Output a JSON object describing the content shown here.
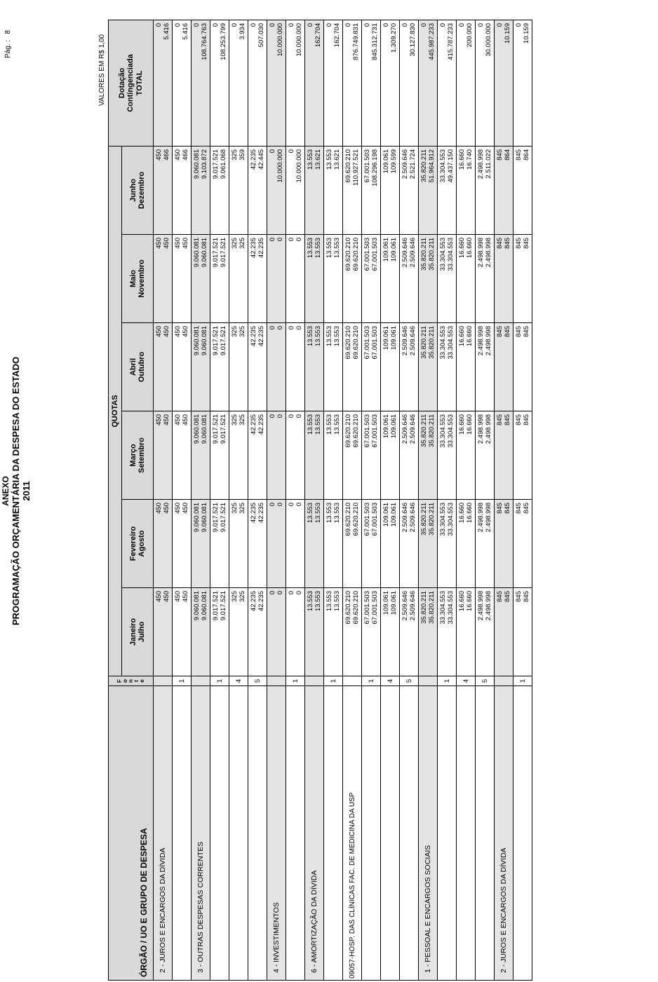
{
  "header": {
    "annex": "ANEXO",
    "title": "PROGRAMAÇÃO ORÇAMENTÁRIA DA DESPESA DO ESTADO",
    "year": "2011",
    "page_label": "Pág. :",
    "page_number": "8",
    "units": "VALORES EM R$ 1,00"
  },
  "columns": {
    "org": "ÓRGÃO / UO  E GRUPO DE DESPESA",
    "fonte": "F o n t e",
    "quotas": "QUOTAS",
    "months": [
      {
        "a": "Janeiro",
        "b": "Julho"
      },
      {
        "a": "Fevereiro",
        "b": "Agosto"
      },
      {
        "a": "Março",
        "b": "Setembro"
      },
      {
        "a": "Abril",
        "b": "Outubro"
      },
      {
        "a": "Maio",
        "b": "Novembro"
      },
      {
        "a": "Junho",
        "b": "Dezembro"
      }
    ],
    "dotacao": "Dotação",
    "contingenciada": "Contingenciada",
    "total": "TOTAL"
  },
  "rows": [
    {
      "kind": "grp",
      "name": "2 - JUROS E ENCARGOS DA DÍVIDA",
      "fonte": "",
      "q": [
        [
          "450",
          "450"
        ],
        [
          "450",
          "450"
        ],
        [
          "450",
          "450"
        ],
        [
          "450",
          "450"
        ],
        [
          "450",
          "450"
        ],
        [
          "450",
          "466"
        ]
      ],
      "t": [
        "0",
        "5.416"
      ]
    },
    {
      "kind": "sub",
      "name": "",
      "fonte": "1",
      "q": [
        [
          "450",
          "450"
        ],
        [
          "450",
          "450"
        ],
        [
          "450",
          "450"
        ],
        [
          "450",
          "450"
        ],
        [
          "450",
          "450"
        ],
        [
          "450",
          "466"
        ]
      ],
      "t": [
        "0",
        "5.416"
      ]
    },
    {
      "kind": "grp",
      "name": "3 - OUTRAS DESPESAS CORRENTES",
      "fonte": "",
      "q": [
        [
          "9.060.081",
          "9.060.081"
        ],
        [
          "9.060.081",
          "9.060.081"
        ],
        [
          "9.060.081",
          "9.060.081"
        ],
        [
          "9.060.081",
          "9.060.081"
        ],
        [
          "9.060.081",
          "9.060.081"
        ],
        [
          "9.060.081",
          "9.103.872"
        ]
      ],
      "t": [
        "0",
        "108.764.763"
      ]
    },
    {
      "kind": "sub",
      "name": "",
      "fonte": "1",
      "q": [
        [
          "9.017.521",
          "9.017.521"
        ],
        [
          "9.017.521",
          "9.017.521"
        ],
        [
          "9.017.521",
          "9.017.521"
        ],
        [
          "9.017.521",
          "9.017.521"
        ],
        [
          "9.017.521",
          "9.017.521"
        ],
        [
          "9.017.521",
          "9.061.068"
        ]
      ],
      "t": [
        "0",
        "108.253.799"
      ]
    },
    {
      "kind": "sub",
      "name": "",
      "fonte": "4",
      "q": [
        [
          "325",
          "325"
        ],
        [
          "325",
          "325"
        ],
        [
          "325",
          "325"
        ],
        [
          "325",
          "325"
        ],
        [
          "325",
          "325"
        ],
        [
          "325",
          "359"
        ]
      ],
      "t": [
        "0",
        "3.934"
      ]
    },
    {
      "kind": "sub",
      "name": "",
      "fonte": "5",
      "q": [
        [
          "42.235",
          "42.235"
        ],
        [
          "42.235",
          "42.235"
        ],
        [
          "42.235",
          "42.235"
        ],
        [
          "42.235",
          "42.235"
        ],
        [
          "42.235",
          "42.235"
        ],
        [
          "42.235",
          "42.445"
        ]
      ],
      "t": [
        "0",
        "507.030"
      ]
    },
    {
      "kind": "grp",
      "name": "4 - INVESTIMENTOS",
      "fonte": "",
      "q": [
        [
          "0",
          "0"
        ],
        [
          "0",
          "0"
        ],
        [
          "0",
          "0"
        ],
        [
          "0",
          "0"
        ],
        [
          "0",
          "0"
        ],
        [
          "0",
          "10.000.000"
        ]
      ],
      "t": [
        "0",
        "10.000.000"
      ]
    },
    {
      "kind": "sub",
      "name": "",
      "fonte": "1",
      "q": [
        [
          "0",
          "0"
        ],
        [
          "0",
          "0"
        ],
        [
          "0",
          "0"
        ],
        [
          "0",
          "0"
        ],
        [
          "0",
          "0"
        ],
        [
          "0",
          "10.000.000"
        ]
      ],
      "t": [
        "0",
        "10.000.000"
      ]
    },
    {
      "kind": "grp",
      "name": "6 - AMORTIZAÇÃO DA DÍVIDA",
      "fonte": "",
      "q": [
        [
          "13.553",
          "13.553"
        ],
        [
          "13.553",
          "13.553"
        ],
        [
          "13.553",
          "13.553"
        ],
        [
          "13.553",
          "13.553"
        ],
        [
          "13.553",
          "13.553"
        ],
        [
          "13.553",
          "13.621"
        ]
      ],
      "t": [
        "0",
        "162.704"
      ]
    },
    {
      "kind": "sub",
      "name": "",
      "fonte": "1",
      "q": [
        [
          "13.553",
          "13.553"
        ],
        [
          "13.553",
          "13.553"
        ],
        [
          "13.553",
          "13.553"
        ],
        [
          "13.553",
          "13.553"
        ],
        [
          "13.553",
          "13.553"
        ],
        [
          "13.553",
          "13.621"
        ]
      ],
      "t": [
        "0",
        "162.704"
      ]
    },
    {
      "kind": "org",
      "name": "09057-HOSP. DAS CLÍNICAS FAC. DE MEDICINA DA USP",
      "fonte": "",
      "q": [
        [
          "69.620.210",
          "69.620.210"
        ],
        [
          "69.620.210",
          "69.620.210"
        ],
        [
          "69.620.210",
          "69.620.210"
        ],
        [
          "69.620.210",
          "69.620.210"
        ],
        [
          "69.620.210",
          "69.620.210"
        ],
        [
          "69.620.210",
          "110.927.521"
        ]
      ],
      "t": [
        "0",
        "876.749.831"
      ]
    },
    {
      "kind": "sub",
      "name": "",
      "fonte": "1",
      "q": [
        [
          "67.001.503",
          "67.001.503"
        ],
        [
          "67.001.503",
          "67.001.503"
        ],
        [
          "67.001.503",
          "67.001.503"
        ],
        [
          "67.001.503",
          "67.001.503"
        ],
        [
          "67.001.503",
          "67.001.503"
        ],
        [
          "67.001.503",
          "108.296.198"
        ]
      ],
      "t": [
        "0",
        "845.312.731"
      ]
    },
    {
      "kind": "sub",
      "name": "",
      "fonte": "4",
      "q": [
        [
          "109.061",
          "109.061"
        ],
        [
          "109.061",
          "109.061"
        ],
        [
          "109.061",
          "109.061"
        ],
        [
          "109.061",
          "109.061"
        ],
        [
          "109.061",
          "109.061"
        ],
        [
          "109.061",
          "109.599"
        ]
      ],
      "t": [
        "0",
        "1.309.270"
      ]
    },
    {
      "kind": "sub",
      "name": "",
      "fonte": "5",
      "q": [
        [
          "2.509.646",
          "2.509.646"
        ],
        [
          "2.509.646",
          "2.509.646"
        ],
        [
          "2.509.646",
          "2.509.646"
        ],
        [
          "2.509.646",
          "2.509.646"
        ],
        [
          "2.509.646",
          "2.509.646"
        ],
        [
          "2.509.646",
          "2.521.724"
        ]
      ],
      "t": [
        "0",
        "30.127.830"
      ]
    },
    {
      "kind": "grp",
      "name": "1 - PESSOAL E ENCARGOS SOCIAIS",
      "fonte": "",
      "q": [
        [
          "35.820.211",
          "35.820.211"
        ],
        [
          "35.820.211",
          "35.820.211"
        ],
        [
          "35.820.211",
          "35.820.211"
        ],
        [
          "35.820.211",
          "35.820.211"
        ],
        [
          "35.820.211",
          "35.820.211"
        ],
        [
          "35.820.211",
          "51.964.912"
        ]
      ],
      "t": [
        "0",
        "445.987.233"
      ]
    },
    {
      "kind": "sub",
      "name": "",
      "fonte": "1",
      "q": [
        [
          "33.304.553",
          "33.304.553"
        ],
        [
          "33.304.553",
          "33.304.553"
        ],
        [
          "33.304.553",
          "33.304.553"
        ],
        [
          "33.304.553",
          "33.304.553"
        ],
        [
          "33.304.553",
          "33.304.553"
        ],
        [
          "33.304.553",
          "49.437.150"
        ]
      ],
      "t": [
        "0",
        "415.787.233"
      ]
    },
    {
      "kind": "sub",
      "name": "",
      "fonte": "4",
      "q": [
        [
          "16.660",
          "16.660"
        ],
        [
          "16.660",
          "16.660"
        ],
        [
          "16.660",
          "16.660"
        ],
        [
          "16.660",
          "16.660"
        ],
        [
          "16.660",
          "16.660"
        ],
        [
          "16.660",
          "16.740"
        ]
      ],
      "t": [
        "0",
        "200.000"
      ]
    },
    {
      "kind": "sub",
      "name": "",
      "fonte": "5",
      "q": [
        [
          "2.498.998",
          "2.498.998"
        ],
        [
          "2.498.998",
          "2.498.998"
        ],
        [
          "2.498.998",
          "2.498.998"
        ],
        [
          "2.498.998",
          "2.498.998"
        ],
        [
          "2.498.998",
          "2.498.998"
        ],
        [
          "2.498.998",
          "2.511.022"
        ]
      ],
      "t": [
        "0",
        "30.000.000"
      ]
    },
    {
      "kind": "grp",
      "name": "2 - JUROS E ENCARGOS DA DÍVIDA",
      "fonte": "",
      "q": [
        [
          "845",
          "845"
        ],
        [
          "845",
          "845"
        ],
        [
          "845",
          "845"
        ],
        [
          "845",
          "845"
        ],
        [
          "845",
          "845"
        ],
        [
          "845",
          "864"
        ]
      ],
      "t": [
        "0",
        "10.159"
      ]
    },
    {
      "kind": "sub",
      "name": "",
      "fonte": "1",
      "q": [
        [
          "845",
          "845"
        ],
        [
          "845",
          "845"
        ],
        [
          "845",
          "845"
        ],
        [
          "845",
          "845"
        ],
        [
          "845",
          "845"
        ],
        [
          "845",
          "864"
        ]
      ],
      "t": [
        "0",
        "10.159"
      ]
    }
  ]
}
